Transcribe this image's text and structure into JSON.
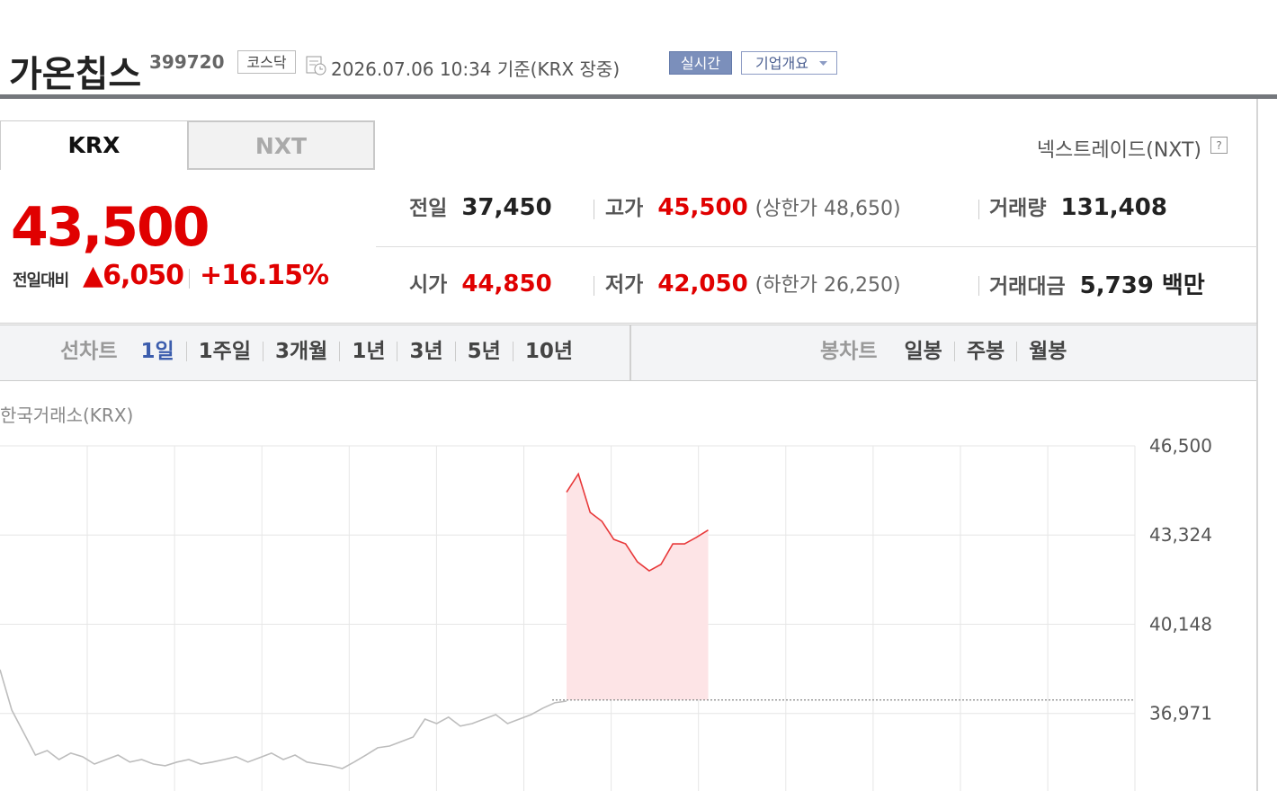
{
  "header": {
    "name": "가온칩스",
    "code": "399720",
    "market": "코스닥",
    "timestamp": "2026.07.06 10:34  기준(KRX 장중)",
    "realtime_badge": "실시간",
    "company_badge": "기업개요"
  },
  "tabs": [
    "KRX",
    "NXT"
  ],
  "nxt_link": "넥스트레이드(NXT)",
  "quote": {
    "price": "43,500",
    "change_label": "전일대비",
    "change": "▲6,050",
    "change_pct": "+16.15%"
  },
  "stats": [
    [
      {
        "label": "전일",
        "value": "37,450"
      },
      {
        "label": "고가",
        "value": "45,500",
        "extra": "(상한가 48,650)"
      },
      {
        "label": "거래량",
        "value": "131,408"
      }
    ],
    [
      {
        "label": "시가",
        "value": "44,850"
      },
      {
        "label": "저가",
        "value": "42,050",
        "extra": "(하한가 26,250)"
      },
      {
        "label": "거래대금",
        "value": "5,739 백만"
      }
    ]
  ],
  "toolbar": {
    "line_label": "선차트",
    "line_periods": [
      "1일",
      "1주일",
      "3개월",
      "1년",
      "3년",
      "5년",
      "10년"
    ],
    "candle_label": "봉차트",
    "candle_periods": [
      "일봉",
      "주봉",
      "월봉"
    ]
  },
  "chart_data": {
    "type": "line",
    "subtitle": "한국거래소(KRX)",
    "ylim": [
      34210,
      46500
    ],
    "yticks": [
      {
        "value": 46500,
        "label": "46,500"
      },
      {
        "value": 43324,
        "label": "43,324"
      },
      {
        "value": 40148,
        "label": "40,148"
      },
      {
        "value": 36971,
        "label": "36,971"
      }
    ],
    "grid": true,
    "baseline": 37450,
    "series": [
      {
        "color": "#bdbdbd",
        "values": [
          38530,
          37090,
          36290,
          35490,
          35650,
          35330,
          35560,
          35430,
          35170,
          35330,
          35490,
          35240,
          35330,
          35170,
          35110,
          35240,
          35330,
          35170,
          35240,
          35330,
          35430,
          35240,
          35400,
          35560,
          35330,
          35490,
          35240,
          35170,
          35110,
          35010,
          35240,
          35490,
          35750,
          35810,
          35970,
          36130,
          36770,
          36610,
          36840,
          36520,
          36610,
          36770,
          36930,
          36610,
          36770,
          36930,
          37160,
          37350,
          37410,
          null,
          null,
          null,
          null,
          null,
          null,
          null,
          null,
          null,
          null,
          null,
          null,
          null,
          null,
          null,
          null,
          null,
          null,
          null,
          null,
          null,
          null,
          null,
          null,
          null,
          null,
          null,
          null,
          null,
          null,
          null,
          null,
          null,
          null,
          null,
          null,
          null,
          null,
          null,
          null,
          null,
          null,
          null,
          null,
          null,
          null,
          null,
          null
        ]
      },
      {
        "color": "#e8393a",
        "fill": "#fde4e6",
        "values": [
          null,
          null,
          null,
          null,
          null,
          null,
          null,
          null,
          null,
          null,
          null,
          null,
          null,
          null,
          null,
          null,
          null,
          null,
          null,
          null,
          null,
          null,
          null,
          null,
          null,
          null,
          null,
          null,
          null,
          null,
          null,
          null,
          null,
          null,
          null,
          null,
          null,
          null,
          null,
          null,
          null,
          null,
          null,
          null,
          null,
          null,
          null,
          null,
          44850,
          45500,
          44130,
          43810,
          43170,
          43010,
          42370,
          42050,
          42280,
          43010,
          43010,
          43240,
          43500,
          null,
          null,
          null,
          null,
          null,
          null,
          null,
          null,
          null,
          null,
          null,
          null,
          null,
          null,
          null,
          null,
          null,
          null,
          null,
          null,
          null,
          null,
          null,
          null,
          null,
          null,
          null,
          null,
          null,
          null,
          null,
          null,
          null,
          null,
          null
        ]
      }
    ]
  }
}
